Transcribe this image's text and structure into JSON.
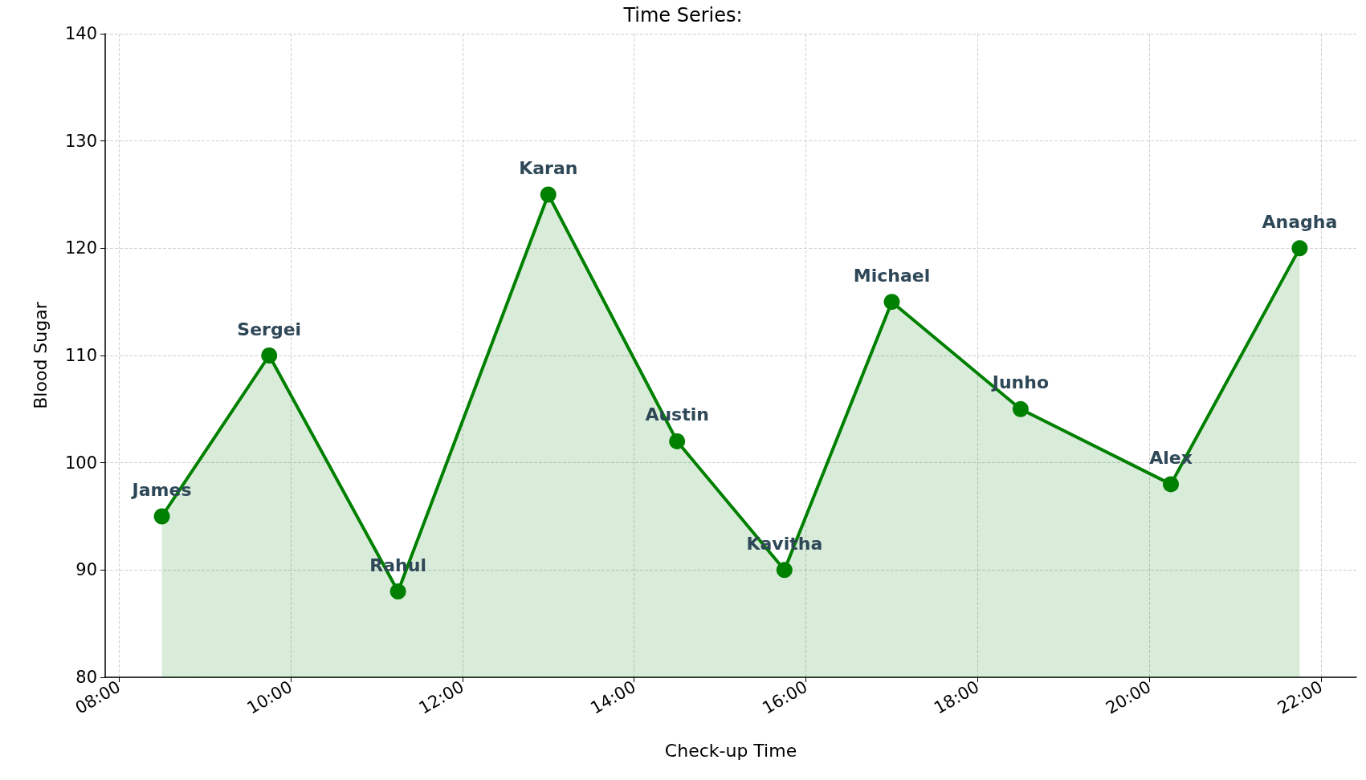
{
  "chart_data": {
    "type": "area",
    "title": "Time Series:",
    "xlabel": "Check-up Time",
    "ylabel": "Blood Sugar",
    "x": [
      8.5,
      9.75,
      11.25,
      13,
      14.5,
      15.75,
      17,
      18.5,
      20.25,
      21.75
    ],
    "series": [
      {
        "color": "#008000",
        "values": [
          95,
          110,
          88,
          125,
          102,
          90,
          115,
          105,
          98,
          120
        ]
      }
    ],
    "xlim": [
      7.84,
      22.41
    ],
    "xticks": [
      {
        "value": 8,
        "label": "08:00"
      },
      {
        "value": 10,
        "label": "10:00"
      },
      {
        "value": 12,
        "label": "12:00"
      },
      {
        "value": 14,
        "label": "14:00"
      },
      {
        "value": 16,
        "label": "16:00"
      },
      {
        "value": 18,
        "label": "18:00"
      },
      {
        "value": 20,
        "label": "20:00"
      },
      {
        "value": 22,
        "label": "22:00"
      }
    ],
    "ylim": [
      80,
      140
    ],
    "yticks": [
      80,
      90,
      100,
      110,
      120,
      130,
      140
    ],
    "grid": true,
    "marker": "circle",
    "line_style": "solid",
    "annotations": [
      {
        "text": "James",
        "x": 8.5,
        "y": 95
      },
      {
        "text": "Sergei",
        "x": 9.75,
        "y": 110
      },
      {
        "text": "Rahul",
        "x": 11.25,
        "y": 88
      },
      {
        "text": "Karan",
        "x": 13,
        "y": 125
      },
      {
        "text": "Austin",
        "x": 14.5,
        "y": 102
      },
      {
        "text": "Kavitha",
        "x": 15.75,
        "y": 90
      },
      {
        "text": "Michael",
        "x": 17,
        "y": 115
      },
      {
        "text": "Junho",
        "x": 18.5,
        "y": 105
      },
      {
        "text": "Alex",
        "x": 20.25,
        "y": 98
      },
      {
        "text": "Anagha",
        "x": 21.75,
        "y": 120
      }
    ]
  }
}
